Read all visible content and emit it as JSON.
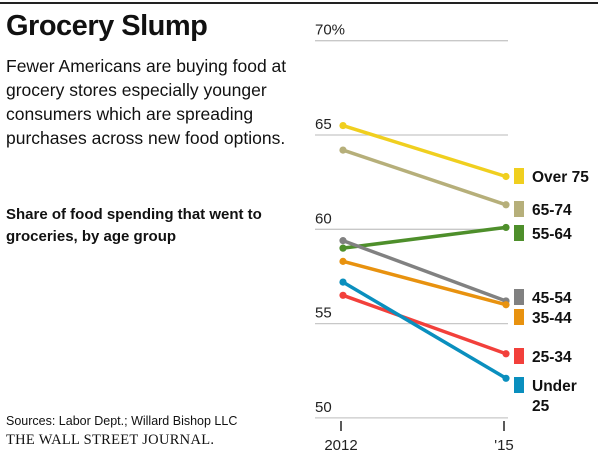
{
  "title": "Grocery Slump",
  "subtitle": "Fewer Americans are buying food at grocery stores especially younger consumers which are spreading purchases across new food options.",
  "note": "Share of food spending that went to groceries, by age group",
  "source": "Sources: Labor Dept.; Willard Bishop LLC",
  "logo": "THE WALL STREET JOURNAL.",
  "chart_data": {
    "type": "line",
    "x": [
      "2012",
      "'15"
    ],
    "ylim": [
      50,
      70
    ],
    "yticks": [
      {
        "v": 70,
        "label": "70%"
      },
      {
        "v": 65,
        "label": "65"
      },
      {
        "v": 60,
        "label": "60"
      },
      {
        "v": 55,
        "label": "55"
      },
      {
        "v": 50,
        "label": "50"
      }
    ],
    "grid": true,
    "legend": "right",
    "series": [
      {
        "name": "Over 75",
        "values": [
          65.5,
          62.8
        ],
        "color": "#f0cf1f"
      },
      {
        "name": "65-74",
        "values": [
          64.2,
          61.3
        ],
        "color": "#b6af7a"
      },
      {
        "name": "55-64",
        "values": [
          59.0,
          60.1
        ],
        "color": "#4e8f2b"
      },
      {
        "name": "45-54",
        "values": [
          59.4,
          56.2
        ],
        "color": "#818181"
      },
      {
        "name": "35-44",
        "values": [
          58.3,
          56.0
        ],
        "color": "#e8920f"
      },
      {
        "name": "25-34",
        "values": [
          56.5,
          53.4
        ],
        "color": "#f2403b"
      },
      {
        "name": "Under 25",
        "values": [
          57.2,
          52.1
        ],
        "color": "#0a8fbe"
      }
    ]
  }
}
